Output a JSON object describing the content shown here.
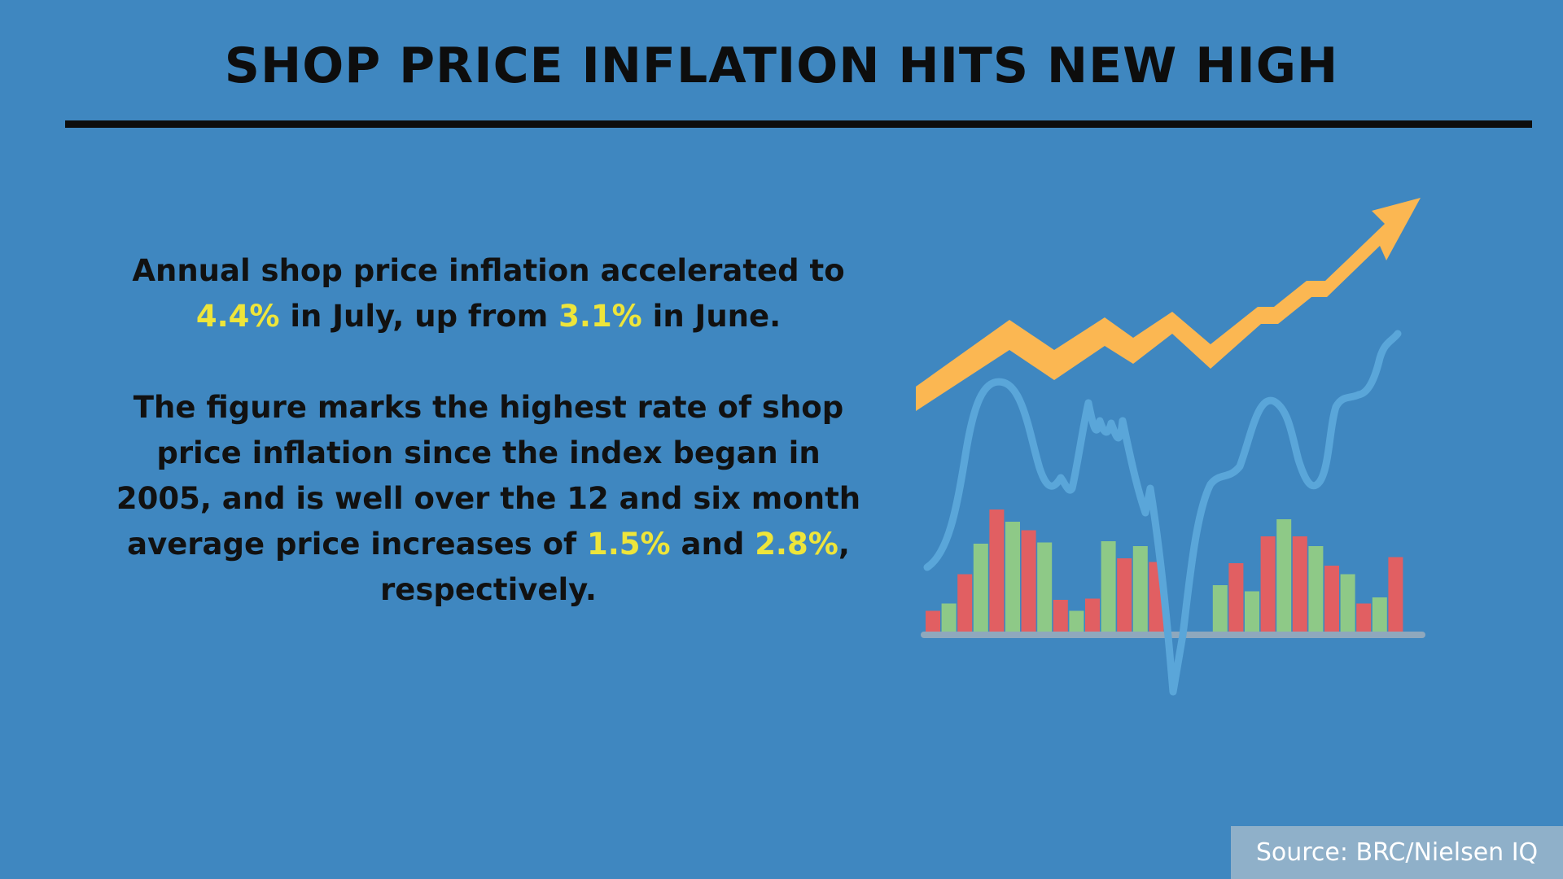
{
  "title": "SHOP PRICE INFLATION HITS NEW HIGH",
  "paragraph1": {
    "part1": "Annual shop price inflation accelerated to ",
    "value_july": "4.4%",
    "part2": " in July, up from ",
    "value_june": "3.1%",
    "part3": " in June."
  },
  "paragraph2": {
    "part1": "The figure marks the highest rate of shop price inflation since the index began in 2005, and is well over the 12 and six month average price increases of ",
    "value_12m": "1.5%",
    "part2": " and ",
    "value_6m": "2.8%",
    "part3": ", respectively."
  },
  "source": "Source: BRC/Nielsen IQ",
  "colors": {
    "background": "#3f87c0",
    "highlight": "#eee53a",
    "arrow": "#fbb752",
    "bar_red": "#e15f62",
    "bar_green": "#8ec987",
    "wave": "#5aa6d9",
    "baseline": "#8fa8bd"
  },
  "illustration": {
    "icon": "rising-trend-arrow-icon",
    "bars": [
      {
        "color": "red",
        "level": 0.17
      },
      {
        "color": "green",
        "level": 0.23
      },
      {
        "color": "red",
        "level": 0.47
      },
      {
        "color": "green",
        "level": 0.72
      },
      {
        "color": "red",
        "level": 1.0
      },
      {
        "color": "green",
        "level": 0.9
      },
      {
        "color": "red",
        "level": 0.83
      },
      {
        "color": "green",
        "level": 0.73
      },
      {
        "color": "red",
        "level": 0.26
      },
      {
        "color": "green",
        "level": 0.17
      },
      {
        "color": "red",
        "level": 0.27
      },
      {
        "color": "green",
        "level": 0.74
      },
      {
        "color": "red",
        "level": 0.6
      },
      {
        "color": "green",
        "level": 0.7
      },
      {
        "color": "red",
        "level": 0.57
      },
      {
        "color": "red",
        "level": 0.0
      },
      {
        "color": "red",
        "level": 0.0
      },
      {
        "color": "red",
        "level": 0.0
      },
      {
        "color": "green",
        "level": 0.38
      },
      {
        "color": "red",
        "level": 0.56
      },
      {
        "color": "green",
        "level": 0.33
      },
      {
        "color": "red",
        "level": 0.78
      },
      {
        "color": "green",
        "level": 0.92
      },
      {
        "color": "red",
        "level": 0.78
      },
      {
        "color": "green",
        "level": 0.7
      },
      {
        "color": "red",
        "level": 0.54
      },
      {
        "color": "green",
        "level": 0.47
      },
      {
        "color": "red",
        "level": 0.23
      },
      {
        "color": "green",
        "level": 0.28
      },
      {
        "color": "red",
        "level": 0.61
      }
    ]
  }
}
